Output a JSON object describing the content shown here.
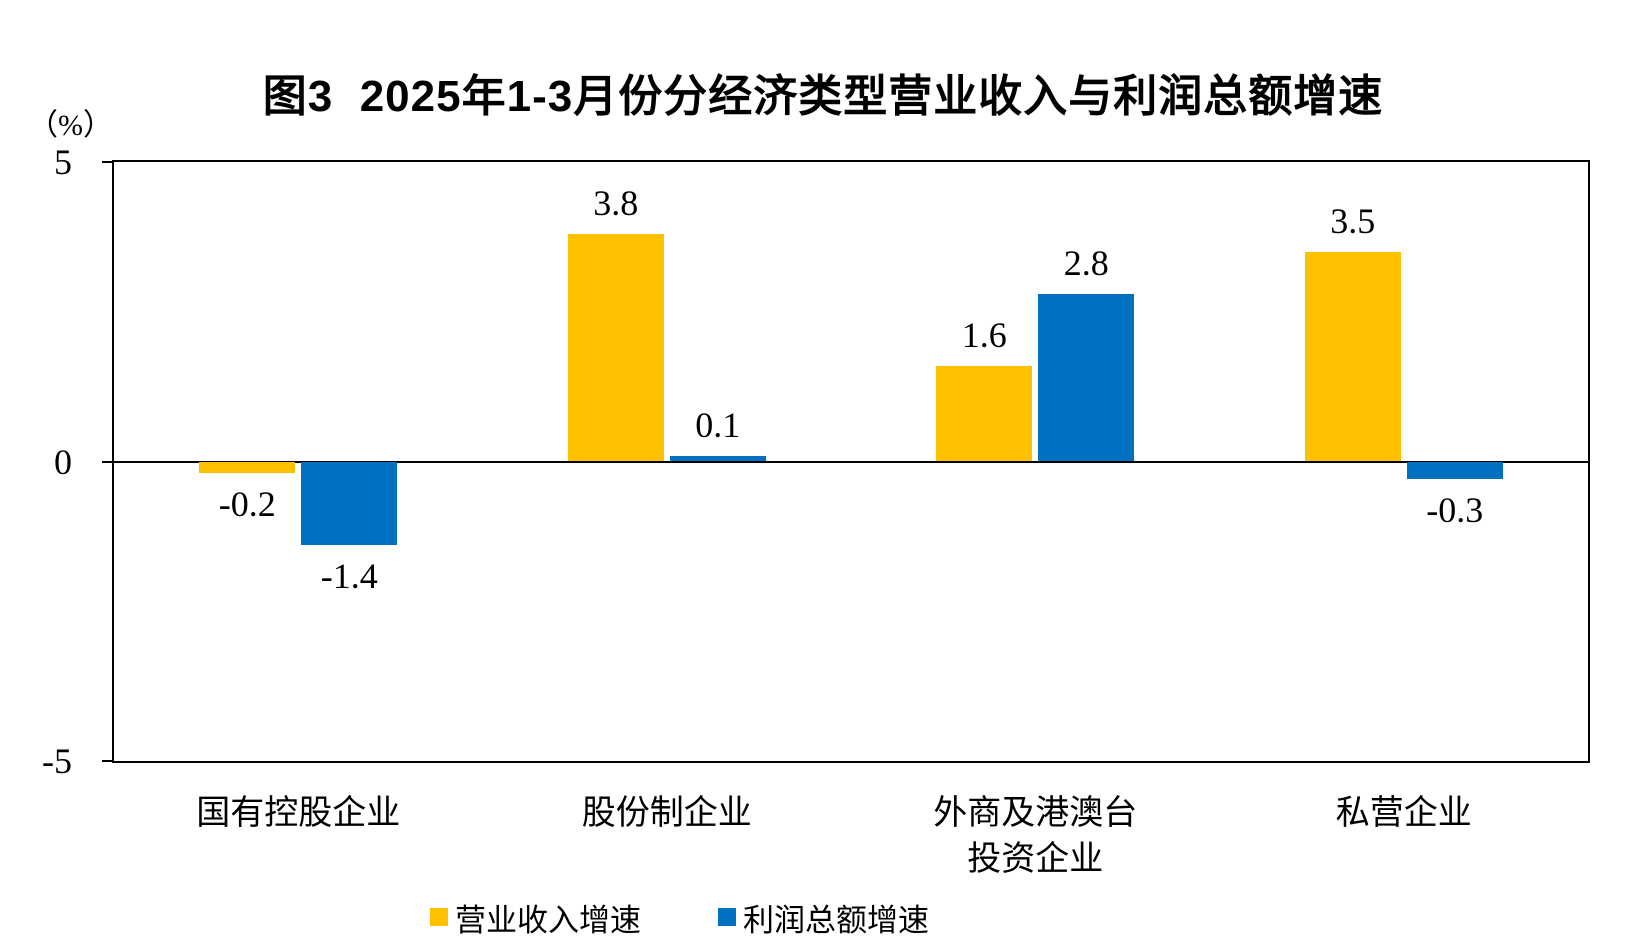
{
  "figure": {
    "title": "图3  2025年1-3月份分经济类型营业收入与利润总额增速",
    "y_axis_unit": "（%）"
  },
  "colors": {
    "revenue_series": "#FFC000",
    "profit_series": "#0070C0",
    "axis": "#000000",
    "background": "#FFFFFF"
  },
  "chart_data": {
    "type": "bar",
    "title": "图3  2025年1-3月份分经济类型营业收入与利润总额增速",
    "ylabel": "（%）",
    "categories": [
      [
        "国有控股企业"
      ],
      [
        "股份制企业"
      ],
      [
        "外商及港澳台",
        "投资企业"
      ],
      [
        "私营企业"
      ]
    ],
    "series": [
      {
        "name": "营业收入增速",
        "color": "#FFC000",
        "values": [
          -0.2,
          3.8,
          1.6,
          3.5
        ]
      },
      {
        "name": "利润总额增速",
        "color": "#0070C0",
        "values": [
          -1.4,
          0.1,
          2.8,
          -0.3
        ]
      }
    ],
    "data_labels": [
      [
        "-0.2",
        "3.8",
        "1.6",
        "3.5"
      ],
      [
        "-1.4",
        "0.1",
        "2.8",
        "-0.3"
      ]
    ],
    "ylim": [
      -5,
      5
    ],
    "yticks": [
      5,
      0,
      -5
    ],
    "grid": false,
    "legend_position": "bottom"
  }
}
